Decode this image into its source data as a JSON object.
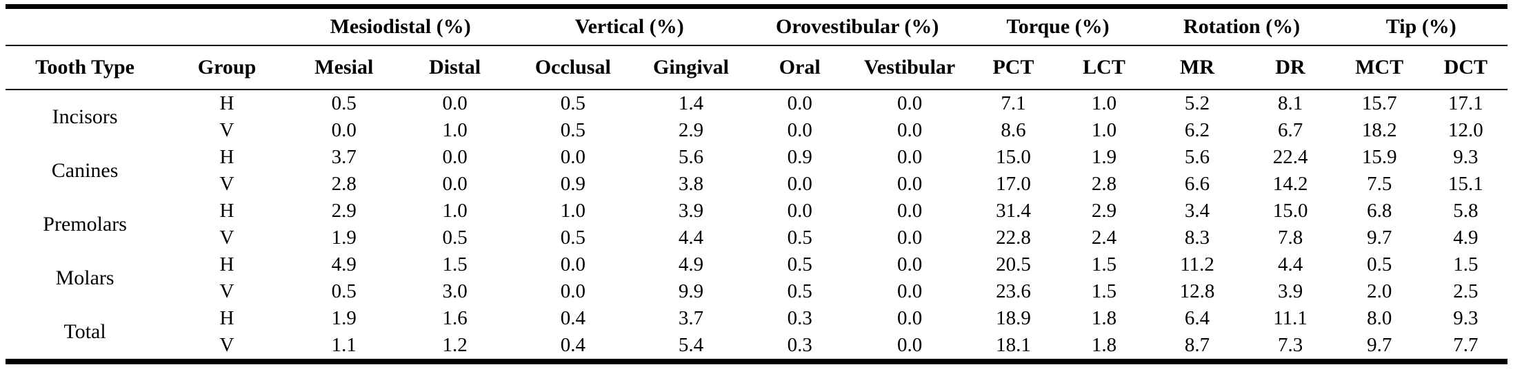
{
  "table": {
    "group_headers": [
      {
        "label": "",
        "span": 2
      },
      {
        "label": "Mesiodistal (%)",
        "span": 2
      },
      {
        "label": "Vertical (%)",
        "span": 2
      },
      {
        "label": "Orovestibular (%)",
        "span": 2
      },
      {
        "label": "Torque (%)",
        "span": 2
      },
      {
        "label": "Rotation (%)",
        "span": 2
      },
      {
        "label": "Tip (%)",
        "span": 2
      }
    ],
    "columns": [
      "Tooth Type",
      "Group",
      "Mesial",
      "Distal",
      "Occlusal",
      "Gingival",
      "Oral",
      "Vestibular",
      "PCT",
      "LCT",
      "MR",
      "DR",
      "MCT",
      "DCT"
    ],
    "row_groups": [
      {
        "tooth_type": "Incisors",
        "rows": [
          {
            "group": "H",
            "values": [
              "0.5",
              "0.0",
              "0.5",
              "1.4",
              "0.0",
              "0.0",
              "7.1",
              "1.0",
              "5.2",
              "8.1",
              "15.7",
              "17.1"
            ]
          },
          {
            "group": "V",
            "values": [
              "0.0",
              "1.0",
              "0.5",
              "2.9",
              "0.0",
              "0.0",
              "8.6",
              "1.0",
              "6.2",
              "6.7",
              "18.2",
              "12.0"
            ]
          }
        ]
      },
      {
        "tooth_type": "Canines",
        "rows": [
          {
            "group": "H",
            "values": [
              "3.7",
              "0.0",
              "0.0",
              "5.6",
              "0.9",
              "0.0",
              "15.0",
              "1.9",
              "5.6",
              "22.4",
              "15.9",
              "9.3"
            ]
          },
          {
            "group": "V",
            "values": [
              "2.8",
              "0.0",
              "0.9",
              "3.8",
              "0.0",
              "0.0",
              "17.0",
              "2.8",
              "6.6",
              "14.2",
              "7.5",
              "15.1"
            ]
          }
        ]
      },
      {
        "tooth_type": "Premolars",
        "rows": [
          {
            "group": "H",
            "values": [
              "2.9",
              "1.0",
              "1.0",
              "3.9",
              "0.0",
              "0.0",
              "31.4",
              "2.9",
              "3.4",
              "15.0",
              "6.8",
              "5.8"
            ]
          },
          {
            "group": "V",
            "values": [
              "1.9",
              "0.5",
              "0.5",
              "4.4",
              "0.5",
              "0.0",
              "22.8",
              "2.4",
              "8.3",
              "7.8",
              "9.7",
              "4.9"
            ]
          }
        ]
      },
      {
        "tooth_type": "Molars",
        "rows": [
          {
            "group": "H",
            "values": [
              "4.9",
              "1.5",
              "0.0",
              "4.9",
              "0.5",
              "0.0",
              "20.5",
              "1.5",
              "11.2",
              "4.4",
              "0.5",
              "1.5"
            ]
          },
          {
            "group": "V",
            "values": [
              "0.5",
              "3.0",
              "0.0",
              "9.9",
              "0.5",
              "0.0",
              "23.6",
              "1.5",
              "12.8",
              "3.9",
              "2.0",
              "2.5"
            ]
          }
        ]
      },
      {
        "tooth_type": "Total",
        "rows": [
          {
            "group": "H",
            "values": [
              "1.9",
              "1.6",
              "0.4",
              "3.7",
              "0.3",
              "0.0",
              "18.9",
              "1.8",
              "6.4",
              "11.1",
              "8.0",
              "9.3"
            ]
          },
          {
            "group": "V",
            "values": [
              "1.1",
              "1.2",
              "0.4",
              "5.4",
              "0.3",
              "0.0",
              "18.1",
              "1.8",
              "8.7",
              "7.3",
              "9.7",
              "7.7"
            ]
          }
        ]
      }
    ],
    "text_color": "#000000",
    "background_color": "#ffffff"
  }
}
